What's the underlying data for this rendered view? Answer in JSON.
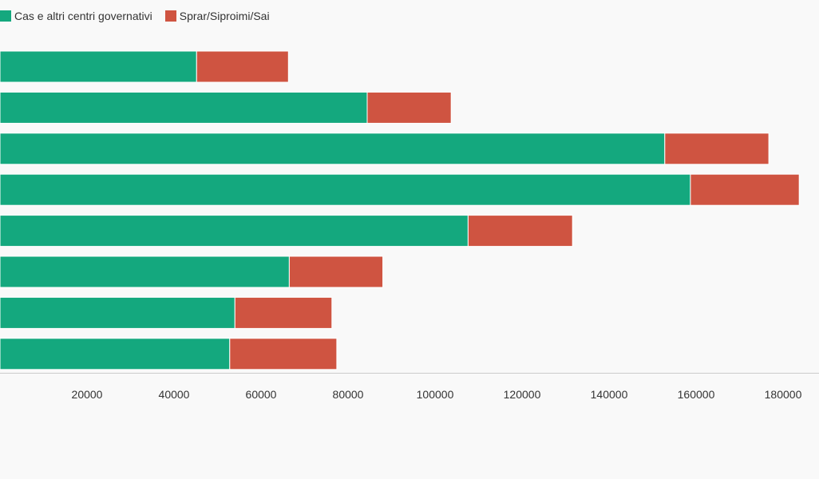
{
  "legend": {
    "items": [
      {
        "label": "Cas e altri centri governativi",
        "color": "#14a87e"
      },
      {
        "label": "Sprar/Siproimi/Sai",
        "color": "#cf5441"
      }
    ]
  },
  "chart_data": {
    "type": "bar",
    "orientation": "horizontal",
    "stacked": true,
    "categories": [
      "",
      "",
      "",
      "",
      "",
      "",
      "",
      ""
    ],
    "series": [
      {
        "name": "Cas e altri centri governativi",
        "color": "#14a87e",
        "values": [
          45200,
          84400,
          152800,
          158700,
          107600,
          66500,
          54000,
          52800
        ]
      },
      {
        "name": "Sprar/Siproimi/Sai",
        "color": "#cf5441",
        "values": [
          21100,
          19300,
          23900,
          25000,
          24000,
          21500,
          22300,
          24600
        ]
      }
    ],
    "xlim": [
      0,
      190000
    ],
    "xticks": [
      20000,
      40000,
      60000,
      80000,
      100000,
      120000,
      140000,
      160000,
      180000
    ],
    "xtick_labels": [
      "20000",
      "40000",
      "60000",
      "80000",
      "100000",
      "120000",
      "140000",
      "160000",
      "180000"
    ],
    "grid": false,
    "legend_position": "top-left"
  }
}
